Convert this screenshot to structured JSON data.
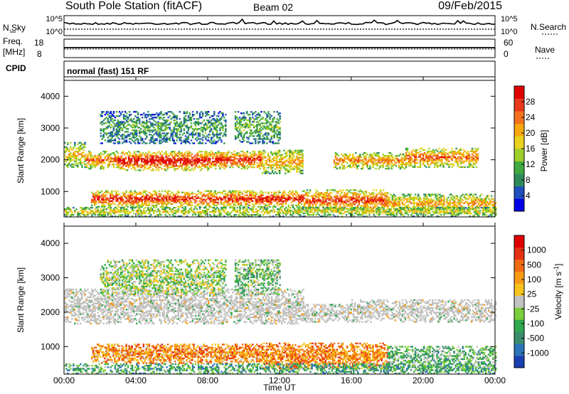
{
  "header": {
    "station_title": "South Pole Station (fitACF)",
    "beam": "Beam 02",
    "date": "09/Feb/2015"
  },
  "top_panels": {
    "nsky_label": "N.Sky",
    "nsearch_label": "N.Search",
    "noise_ticks": [
      "10^5",
      "10^0"
    ],
    "freq_label_line1": "Freq.",
    "freq_label_line2": "[MHz]",
    "freq_ticks": [
      "18",
      "8"
    ],
    "nave_label": "Nave",
    "nave_ticks": [
      "60",
      "0"
    ],
    "cpid_label": "CPID",
    "cpid_text": "normal (fast) 151 RF"
  },
  "x_axis": {
    "label": "Time UT",
    "ticks": [
      "00:00",
      "04:00",
      "08:00",
      "12:00",
      "16:00",
      "20:00",
      "00:00"
    ]
  },
  "colorbars": {
    "power": {
      "label": "Power [dB]",
      "ticks": [
        "28",
        "24",
        "20",
        "16",
        "12",
        "8",
        "4"
      ],
      "colors": [
        "#0000e6",
        "#1f4fbf",
        "#2d8a5a",
        "#3faa3f",
        "#9fcf2a",
        "#e8d21e",
        "#f7a80f",
        "#f2731c",
        "#e8391c",
        "#e00000"
      ]
    },
    "velocity": {
      "label": "Velocity [m s^-1]",
      "ticks": [
        "1000",
        "500",
        "100",
        "25",
        "-25",
        "-100",
        "-500",
        "-1000"
      ],
      "colors": [
        "#1a3fb0",
        "#2c73b8",
        "#3b8c6b",
        "#2fa84f",
        "#7ccf3a",
        "#c2c2c0",
        "#f7c21c",
        "#f79a16",
        "#ef6a12",
        "#e53214",
        "#e00000"
      ]
    }
  },
  "chart_data": [
    {
      "type": "heatmap",
      "title": "South Pole Station (fitACF) Beam 02 09/Feb/2015",
      "quantity": "Power",
      "xlabel": "Time UT",
      "ylabel": "Slant Range [km]",
      "x_ticks": [
        "00:00",
        "04:00",
        "08:00",
        "12:00",
        "16:00",
        "20:00",
        "00:00"
      ],
      "y_ticks": [
        1000,
        2000,
        3000,
        4000
      ],
      "ylim": [
        200,
        4500
      ],
      "colorbar_label": "Power [dB]",
      "colorbar_ticks": [
        4,
        8,
        12,
        16,
        20,
        24,
        28
      ],
      "bands": [
        {
          "t_start": 0.0,
          "t_end": 1.2,
          "r_low": 1750,
          "r_high": 2550,
          "level": 0.55
        },
        {
          "t_start": 1.2,
          "t_end": 3.0,
          "r_low": 1700,
          "r_high": 2250,
          "level": 0.7
        },
        {
          "t_start": 3.0,
          "t_end": 8.0,
          "r_low": 1650,
          "r_high": 2250,
          "level": 0.85
        },
        {
          "t_start": 8.0,
          "t_end": 11.0,
          "r_low": 1700,
          "r_high": 2250,
          "level": 0.8
        },
        {
          "t_start": 11.0,
          "t_end": 13.3,
          "r_low": 1550,
          "r_high": 2300,
          "level": 0.6
        },
        {
          "t_start": 15.0,
          "t_end": 19.0,
          "r_low": 1700,
          "r_high": 2200,
          "level": 0.65
        },
        {
          "t_start": 19.0,
          "t_end": 23.0,
          "r_low": 1750,
          "r_high": 2350,
          "level": 0.7
        },
        {
          "t_start": 1.5,
          "t_end": 13.5,
          "r_low": 500,
          "r_high": 1000,
          "level": 0.8
        },
        {
          "t_start": 13.5,
          "t_end": 18.0,
          "r_low": 350,
          "r_high": 1050,
          "level": 0.75
        },
        {
          "t_start": 18.0,
          "t_end": 24.0,
          "r_low": 300,
          "r_high": 900,
          "level": 0.6
        },
        {
          "t_start": 0.0,
          "t_end": 24.0,
          "r_low": 200,
          "r_high": 500,
          "level": 0.5
        },
        {
          "t_start": 9.5,
          "t_end": 12.0,
          "r_low": 2500,
          "r_high": 3500,
          "level": 0.35
        },
        {
          "t_start": 2.0,
          "t_end": 9.0,
          "r_low": 2500,
          "r_high": 3500,
          "level": 0.3
        }
      ]
    },
    {
      "type": "heatmap",
      "quantity": "Velocity",
      "xlabel": "Time UT",
      "ylabel": "Slant Range [km]",
      "x_ticks": [
        "00:00",
        "04:00",
        "08:00",
        "12:00",
        "16:00",
        "20:00",
        "00:00"
      ],
      "y_ticks": [
        1000,
        2000,
        3000,
        4000
      ],
      "ylim": [
        200,
        4500
      ],
      "colorbar_label": "Velocity [m s^-1]",
      "colorbar_ticks": [
        1000,
        500,
        100,
        25,
        -25,
        -100,
        -500,
        -1000
      ],
      "bands": [
        {
          "t_start": 0.0,
          "t_end": 13.3,
          "r_low": 1650,
          "r_high": 2650,
          "level": 0.5
        },
        {
          "t_start": 13.3,
          "t_end": 16.0,
          "r_low": 1700,
          "r_high": 2200,
          "level": 0.5
        },
        {
          "t_start": 16.0,
          "t_end": 24.0,
          "r_low": 1700,
          "r_high": 2350,
          "level": 0.5
        },
        {
          "t_start": 1.5,
          "t_end": 11.0,
          "r_low": 500,
          "r_high": 1050,
          "level": 0.7
        },
        {
          "t_start": 11.0,
          "t_end": 18.0,
          "r_low": 350,
          "r_high": 1100,
          "level": 0.72
        },
        {
          "t_start": 18.0,
          "t_end": 24.0,
          "r_low": 300,
          "r_high": 1000,
          "level": 0.35
        },
        {
          "t_start": 0.0,
          "t_end": 24.0,
          "r_low": 200,
          "r_high": 500,
          "level": 0.3
        },
        {
          "t_start": 9.5,
          "t_end": 12.0,
          "r_low": 2500,
          "r_high": 3500,
          "level": 0.4
        },
        {
          "t_start": 2.0,
          "t_end": 9.0,
          "r_low": 2500,
          "r_high": 3500,
          "level": 0.45
        }
      ]
    }
  ]
}
